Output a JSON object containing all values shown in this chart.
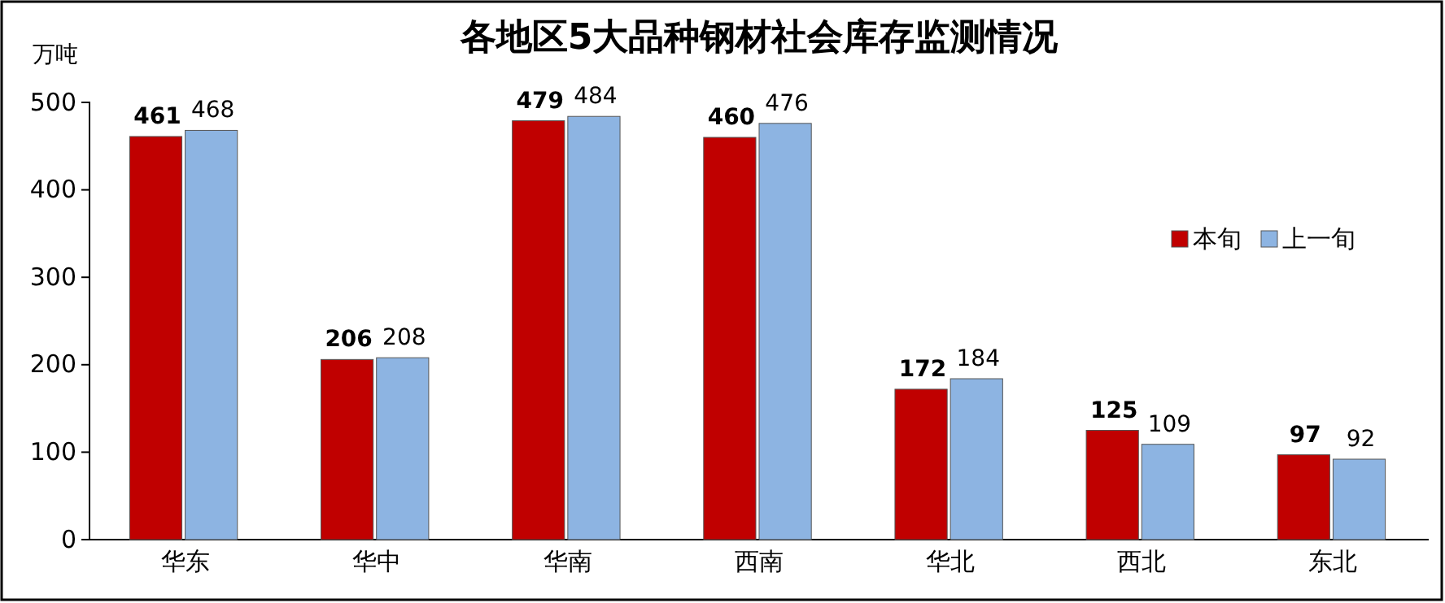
{
  "chart_data": {
    "type": "bar",
    "title": "各地区5大品种钢材社会库存监测情况",
    "ylabel": "万吨",
    "categories": [
      "华东",
      "华中",
      "华南",
      "西南",
      "华北",
      "西北",
      "东北"
    ],
    "series": [
      {
        "name": "本旬",
        "color": "#c00000",
        "values": [
          461,
          206,
          479,
          460,
          172,
          125,
          97
        ]
      },
      {
        "name": "上一旬",
        "color": "#8db4e2",
        "values": [
          468,
          208,
          484,
          476,
          184,
          109,
          92
        ]
      }
    ],
    "ylim": [
      0,
      500
    ],
    "yticks": [
      0,
      100,
      200,
      300,
      400,
      500
    ],
    "grid": false,
    "legend": "right",
    "data_labels": true
  }
}
